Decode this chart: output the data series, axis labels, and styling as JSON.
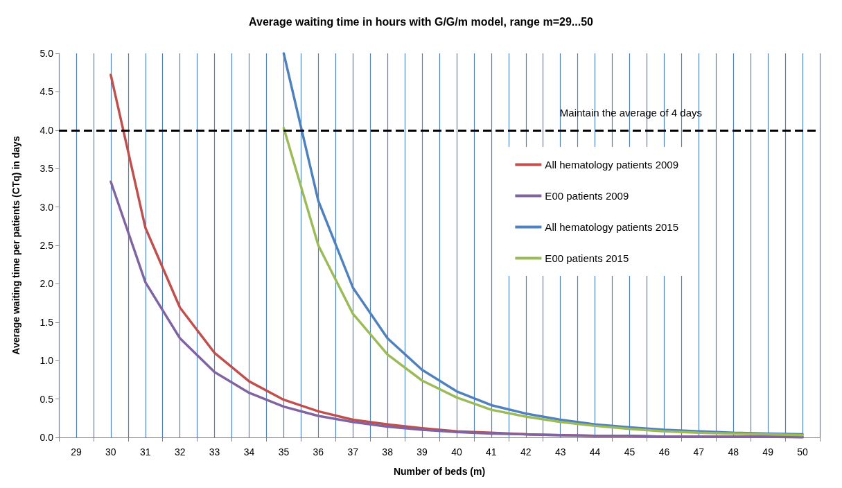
{
  "chart_data": {
    "type": "line",
    "title": "Average waiting time in hours with G/G/m model, range m=29...50",
    "xlabel": "Number of beds (m)",
    "ylabel": "Average waiting time per patients (CTq) in days",
    "categories": [
      "29",
      "30",
      "31",
      "32",
      "33",
      "34",
      "35",
      "36",
      "37",
      "38",
      "39",
      "40",
      "41",
      "42",
      "43",
      "44",
      "45",
      "46",
      "47",
      "48",
      "49",
      "50"
    ],
    "series": [
      {
        "name": "All hematology patients 2009",
        "color": "#c0504d",
        "values": [
          null,
          4.72,
          2.73,
          1.69,
          1.1,
          0.73,
          0.49,
          0.34,
          0.23,
          0.17,
          0.12,
          0.08,
          0.06,
          0.04,
          0.03,
          0.02,
          0.02,
          0.01,
          0.01,
          0.01,
          0.01,
          0.01
        ]
      },
      {
        "name": "E00 patients 2009",
        "color": "#8064a2",
        "values": [
          null,
          3.33,
          2.02,
          1.29,
          0.85,
          0.58,
          0.4,
          0.28,
          0.2,
          0.14,
          0.1,
          0.07,
          0.05,
          0.04,
          0.03,
          0.02,
          0.02,
          0.01,
          0.01,
          0.01,
          0.01,
          0
        ]
      },
      {
        "name": "All hematology patients 2015",
        "color": "#4f81bd",
        "values": [
          null,
          null,
          null,
          null,
          null,
          null,
          5.0,
          3.08,
          1.95,
          1.29,
          0.88,
          0.6,
          0.42,
          0.31,
          0.23,
          0.17,
          0.13,
          0.1,
          0.08,
          0.06,
          0.05,
          0.04
        ]
      },
      {
        "name": "E00 patients 2015",
        "color": "#9bbb59",
        "values": [
          null,
          null,
          null,
          null,
          null,
          null,
          4.03,
          2.5,
          1.61,
          1.08,
          0.74,
          0.52,
          0.36,
          0.27,
          0.2,
          0.15,
          0.11,
          0.08,
          0.06,
          0.05,
          0.04,
          0.03
        ]
      }
    ],
    "ylim": [
      0,
      5
    ],
    "yticks": [
      {
        "value": 0,
        "label": "0.0"
      },
      {
        "value": 0.5,
        "label": "0.5"
      },
      {
        "value": 1,
        "label": "1.0"
      },
      {
        "value": 1.5,
        "label": "1.5"
      },
      {
        "value": 2,
        "label": "2.0"
      },
      {
        "value": 2.5,
        "label": "2.5"
      },
      {
        "value": 3,
        "label": "3.0"
      },
      {
        "value": 3.5,
        "label": "3.5"
      },
      {
        "value": 4,
        "label": "4.0"
      },
      {
        "value": 4.5,
        "label": "4.5"
      },
      {
        "value": 5,
        "label": "5.0"
      }
    ],
    "ref_lines": [
      {
        "axis": "y",
        "value": 4,
        "label": "Maintain the average of 4 days",
        "color": "#000000",
        "line_style": "dashed"
      }
    ],
    "grid": "x",
    "legend": "top right",
    "marker": "none",
    "line_style": "solid"
  }
}
